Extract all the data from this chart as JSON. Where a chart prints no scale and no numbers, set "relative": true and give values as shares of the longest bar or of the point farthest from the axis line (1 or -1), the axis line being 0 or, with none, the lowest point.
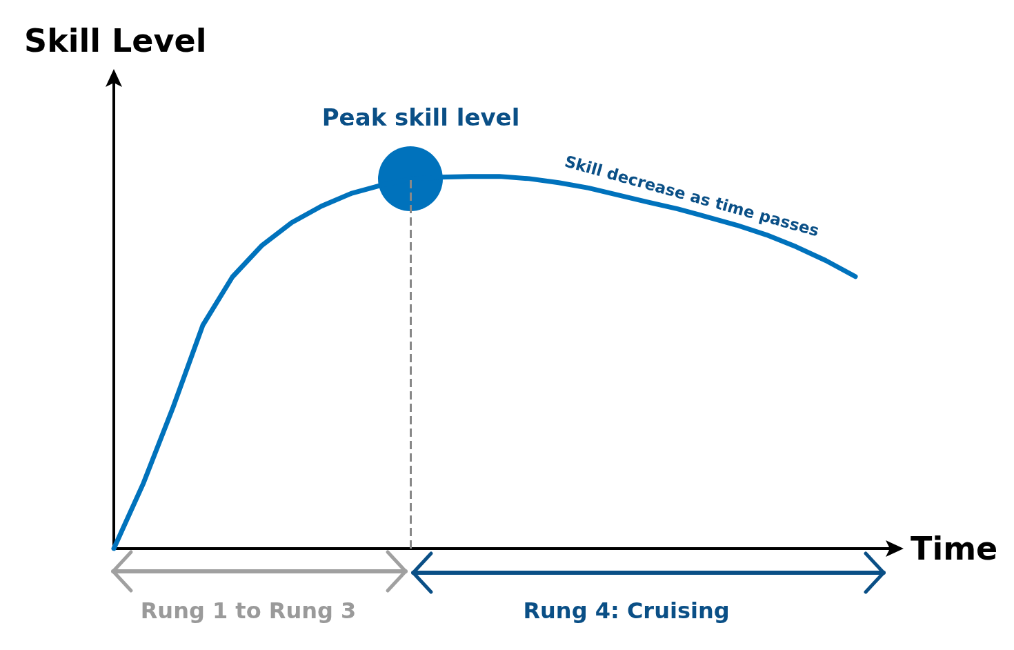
{
  "chart_data": {
    "type": "line",
    "relative": true,
    "xlabel": "Time",
    "ylabel": "Skill Level",
    "marker": "none",
    "line_style": "solid",
    "categories": [
      null,
      null,
      null,
      null,
      null,
      null,
      null,
      null,
      null,
      null,
      null,
      null,
      null,
      null,
      null,
      null,
      null,
      null,
      null,
      null,
      null,
      null,
      null,
      null,
      null,
      null
    ],
    "series": [
      {
        "color": "#0072bc",
        "values": [
          0,
          0.176,
          0.38,
          0.6,
          0.73,
          0.815,
          0.876,
          0.92,
          0.954,
          0.976,
          0.993,
          0.998,
          1,
          1,
          0.994,
          0.983,
          0.969,
          0.95,
          0.931,
          0.913,
          0.891,
          0.869,
          0.843,
          0.811,
          0.774,
          0.731
        ]
      }
    ],
    "ref_lines": [
      {
        "axis": "x",
        "color": "#888888",
        "line_style": "dashed"
      }
    ],
    "annotations": [
      {
        "text": "Peak skill level",
        "y": 0.993
      },
      "Skill decrease as time passes",
      "Rung 1 to Rung 3",
      "Rung 4: Cruising"
    ]
  }
}
